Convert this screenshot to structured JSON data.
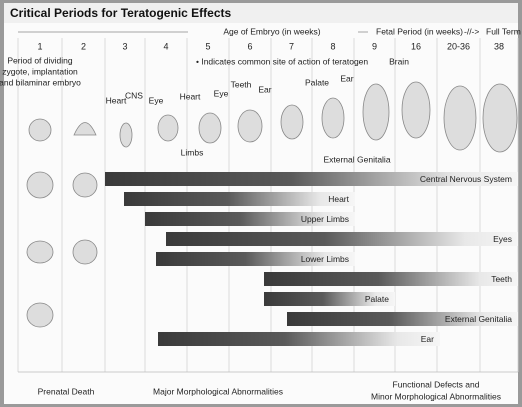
{
  "title": "Critical Periods for Teratogenic Effects",
  "header": {
    "embryo_period": "Age of Embryo (in weeks)",
    "fetal_period": "Fetal Period (in weeks)",
    "full_term": "Full Term",
    "weeks": [
      "1",
      "2",
      "3",
      "4",
      "5",
      "6",
      "7",
      "8",
      "9",
      "16",
      "20-36",
      "38"
    ]
  },
  "notes": {
    "zygote": [
      "Period of dividing",
      "zygote, implantation",
      "and bilaminar embryo"
    ],
    "teratogen": "• Indicates common site of action of teratogen"
  },
  "sites": [
    "Heart",
    "CNS",
    "Eye",
    "Heart",
    "Eye",
    "Limbs",
    "Teeth",
    "Ear",
    "Palate",
    "Ear",
    "Brain",
    "External Genitalia"
  ],
  "bars": [
    "Central Nervous System",
    "Heart",
    "Upper Limbs",
    "Eyes",
    "Lower Limbs",
    "Teeth",
    "Palate",
    "External Genitalia",
    "Ear"
  ],
  "outcomes": {
    "prenatal_death": "Prenatal Death",
    "major": "Major Morphological Abnormalities",
    "minor": [
      "Functional Defects and",
      "Minor Morphological Abnormalities"
    ]
  }
}
